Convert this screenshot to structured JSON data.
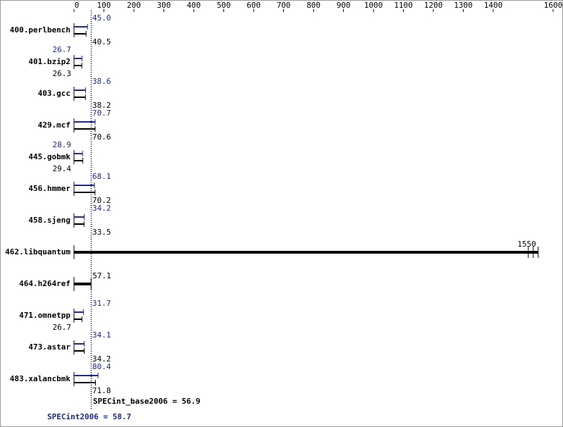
{
  "chart_data": {
    "type": "bar",
    "categories": [
      "400.perlbench",
      "401.bzip2",
      "403.gcc",
      "429.mcf",
      "445.gobmk",
      "456.hmmer",
      "458.sjeng",
      "462.libquantum",
      "464.h264ref",
      "471.omnetpp",
      "473.astar",
      "483.xalancbmk"
    ],
    "series": [
      {
        "color": "#1f2a8c",
        "values": [
          45.0,
          26.7,
          38.6,
          70.7,
          28.9,
          68.1,
          34.2,
          null,
          null,
          31.7,
          34.1,
          80.4
        ]
      },
      {
        "color": "#000000",
        "values": [
          40.5,
          26.3,
          38.2,
          70.6,
          29.4,
          70.2,
          33.5,
          1550,
          57.1,
          26.7,
          34.2,
          71.8
        ]
      }
    ],
    "value_labels": [
      [
        "45.0",
        "26.7",
        "38.6",
        "70.7",
        "28.9",
        "68.1",
        "34.2",
        null,
        null,
        "31.7",
        "34.1",
        "80.4"
      ],
      [
        "40.5",
        "26.3",
        "38.2",
        "70.6",
        "29.4",
        "70.2",
        "33.5",
        "1550",
        "57.1",
        "26.7",
        "34.2",
        "71.8"
      ]
    ],
    "xlim": [
      0,
      1600
    ],
    "xticks": [
      0,
      100,
      200,
      300,
      400,
      500,
      600,
      700,
      800,
      900,
      1000,
      1100,
      1200,
      1300,
      1400,
      1600
    ],
    "base_score": {
      "value": 56.9,
      "label": "SPECint_base2006 = 56.9"
    },
    "peak_score": {
      "value": 58.7,
      "label": "SPECint2006 = 58.7"
    }
  }
}
